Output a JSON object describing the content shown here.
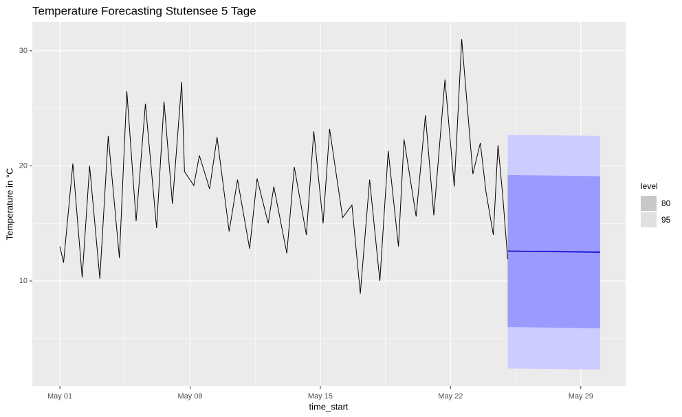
{
  "chart_data": {
    "type": "line",
    "title": "Temperature Forecasting Stutensee 5 Tage",
    "x_label": "time_start",
    "y_label": "Temperature in °C",
    "x": [
      1.0,
      1.2,
      1.7,
      2.2,
      2.6,
      3.15,
      3.6,
      4.2,
      4.6,
      5.1,
      5.6,
      6.2,
      6.6,
      7.05,
      7.55,
      7.7,
      8.2,
      8.5,
      9.05,
      9.45,
      10.1,
      10.55,
      11.2,
      11.6,
      12.2,
      12.5,
      13.2,
      13.6,
      14.25,
      14.65,
      15.15,
      15.5,
      16.2,
      16.7,
      17.15,
      17.65,
      18.2,
      18.65,
      19.2,
      19.5,
      20.15,
      20.65,
      21.1,
      21.7,
      22.2,
      22.6,
      23.2,
      23.6,
      23.9,
      24.3,
      24.55,
      24.8,
      25.07
    ],
    "values": [
      13,
      11.6,
      20.2,
      10.3,
      20,
      10.2,
      22.6,
      12,
      26.5,
      15.2,
      25.4,
      14.6,
      25.6,
      16.7,
      27.3,
      19.5,
      18.3,
      20.9,
      18,
      22.5,
      14.3,
      18.8,
      12.8,
      18.9,
      15,
      18.2,
      12.4,
      19.9,
      14,
      23,
      15,
      23.2,
      15.5,
      16.6,
      8.9,
      18.8,
      10,
      21.3,
      13,
      22.3,
      15.6,
      24.4,
      15.7,
      27.5,
      18.2,
      31,
      19.3,
      22,
      17.8,
      14,
      21.8,
      17.5,
      11.9
    ],
    "color": "#000000",
    "forecast": {
      "x": [
        25.07,
        30.04
      ],
      "mean": [
        12.6,
        12.5
      ],
      "color": "#0000cc",
      "bands": [
        {
          "name": "95",
          "lower": [
            2.4,
            2.3
          ],
          "upper": [
            22.7,
            22.6
          ],
          "fill": "#ccccff",
          "key_color": "#e0e0e0"
        },
        {
          "name": "80",
          "lower": [
            6.0,
            5.9
          ],
          "upper": [
            19.2,
            19.1
          ],
          "fill": "#9a9aff",
          "key_color": "#c8c8c8"
        }
      ]
    },
    "legend_title": "level",
    "legend_order": [
      1,
      0
    ],
    "xlim": [
      -0.48,
      31.41
    ],
    "ylim": [
      0.87,
      32.5
    ],
    "xticks": [
      {
        "value": 1,
        "label": "May 01"
      },
      {
        "value": 8,
        "label": "May 08"
      },
      {
        "value": 15,
        "label": "May 15"
      },
      {
        "value": 22,
        "label": "May 22"
      },
      {
        "value": 29,
        "label": "May 29"
      }
    ],
    "yticks": [
      10,
      20,
      30
    ],
    "grid": true
  }
}
